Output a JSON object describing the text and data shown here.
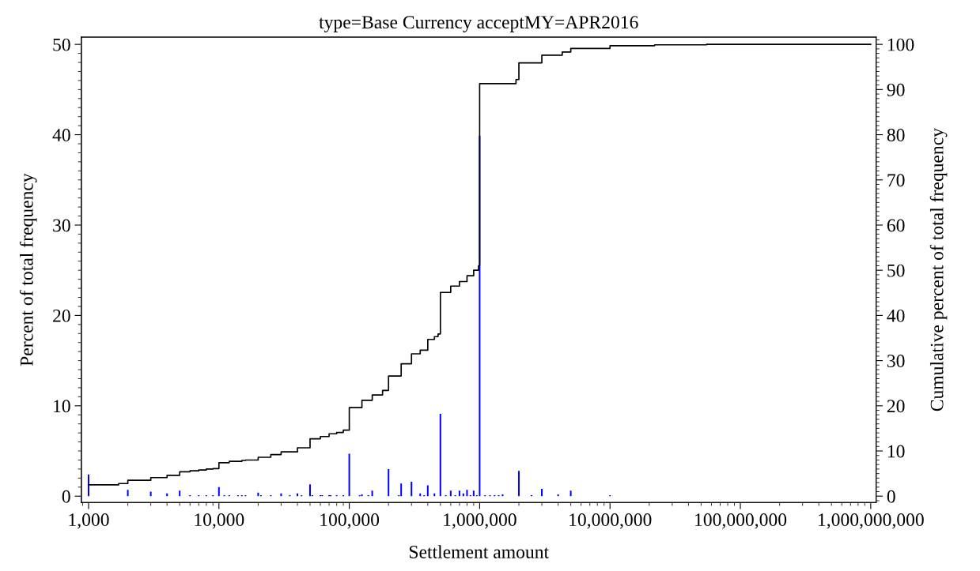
{
  "chart_data": {
    "type": "bar",
    "title": "type=Base Currency acceptMY=APR2016",
    "xlabel": "Settlement amount",
    "ylabel": "Percent of total frequency",
    "y2label": "Cumulative percent of total frequency",
    "log": "x",
    "grid": false,
    "xlim": [
      880,
      1100000000
    ],
    "xticks": [
      {
        "value": 1000,
        "label": "1,000"
      },
      {
        "value": 10000,
        "label": "10,000"
      },
      {
        "value": 100000,
        "label": "100,000"
      },
      {
        "value": 1000000,
        "label": "1,000,000"
      },
      {
        "value": 10000000,
        "label": "10,000,000"
      },
      {
        "value": 100000000,
        "label": "100,000,000"
      },
      {
        "value": 1000000000,
        "label": "1,000,000,000"
      }
    ],
    "ylim": [
      -0.7,
      50.8
    ],
    "yticks": [
      0,
      10,
      20,
      30,
      40,
      50
    ],
    "y2lim": [
      -1.4,
      101.6
    ],
    "y2ticks": [
      0,
      10,
      20,
      30,
      40,
      50,
      60,
      70,
      80,
      90,
      100
    ],
    "series": [
      {
        "color": "#0000ff",
        "x": [
          1000,
          2000,
          3000,
          4000,
          5000,
          6000,
          7000,
          8000,
          9000,
          10000,
          11000,
          12000,
          14000,
          15000,
          16000,
          20000,
          21000,
          25000,
          30000,
          35000,
          40000,
          43000,
          50000,
          52000,
          60000,
          62000,
          70000,
          72000,
          80000,
          90000,
          100000,
          120000,
          125000,
          140000,
          150000,
          200000,
          240000,
          250000,
          300000,
          350000,
          375000,
          400000,
          450000,
          500000,
          550000,
          600000,
          650000,
          700000,
          750000,
          800000,
          850000,
          900000,
          950000,
          1000000,
          1100000,
          1200000,
          1300000,
          1400000,
          1500000,
          2000000,
          2500000,
          3000000,
          4000000,
          5000000,
          10000000
        ],
        "values": [
          2.4,
          0.7,
          0.5,
          0.3,
          0.6,
          0.1,
          0.1,
          0.1,
          0.1,
          1.0,
          0.1,
          0.1,
          0.1,
          0.1,
          0.1,
          0.4,
          0.1,
          0.1,
          0.3,
          0.1,
          0.3,
          0.1,
          1.3,
          0.1,
          0.1,
          0.1,
          0.1,
          0.1,
          0.1,
          0.1,
          4.7,
          0.1,
          0.2,
          0.1,
          0.6,
          3.0,
          0.1,
          1.4,
          1.6,
          0.3,
          0.1,
          1.2,
          0.3,
          9.1,
          0.1,
          0.6,
          0.1,
          0.6,
          0.3,
          0.7,
          0.1,
          0.6,
          0.1,
          39.9,
          0.1,
          0.1,
          0.1,
          0.1,
          0.2,
          2.8,
          0.1,
          0.8,
          0.2,
          0.6,
          0.1
        ]
      },
      {
        "type": "step",
        "axis": "y2",
        "color": "#000000",
        "x": [
          1000,
          1700,
          2000,
          3000,
          4000,
          5000,
          6000,
          7000,
          8000,
          9000,
          10000,
          12000,
          15000,
          16000,
          20000,
          25000,
          30000,
          40000,
          50000,
          60000,
          70000,
          80000,
          90000,
          100000,
          125000,
          150000,
          180000,
          200000,
          250000,
          300000,
          350000,
          400000,
          450000,
          480000,
          500000,
          600000,
          700000,
          800000,
          900000,
          980000,
          1000000,
          1900000,
          2000000,
          3000000,
          4300000,
          5000000,
          10000000,
          22000000,
          55000000,
          1000000000
        ],
        "values": [
          2.5,
          2.8,
          3.5,
          4.1,
          4.6,
          5.4,
          5.6,
          5.8,
          6.0,
          6.1,
          7.4,
          7.7,
          7.9,
          8.0,
          8.6,
          9.2,
          9.8,
          10.7,
          12.7,
          13.2,
          13.8,
          14.1,
          14.6,
          19.6,
          21.2,
          22.4,
          23.4,
          26.6,
          29.3,
          31.5,
          32.3,
          34.7,
          35.3,
          35.9,
          45.1,
          46.5,
          47.5,
          48.8,
          50.0,
          51.0,
          91.3,
          92.2,
          95.9,
          97.6,
          98.3,
          99.1,
          99.7,
          99.9,
          100,
          100
        ]
      }
    ]
  }
}
